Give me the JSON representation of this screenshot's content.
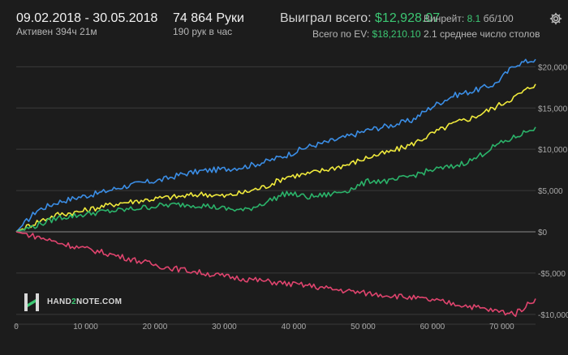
{
  "header": {
    "date_range": "09.02.2018 - 30.05.2018",
    "active_time": "Активен 394ч 21м",
    "hands": "74 864 Руки",
    "hands_per_hour": "190 рук в час",
    "won_label": "Выиграл всего:",
    "won_value": "$12,928.07",
    "ev_label": "Всего по EV:",
    "ev_value": "$18,210.10",
    "winrate_label": "Винрейт:",
    "winrate_value": "8.1",
    "winrate_suffix": "бб/100",
    "tables": "2.1 среднее число столов"
  },
  "logo": {
    "brand_left": "HAND",
    "brand_mid": "2",
    "brand_right": "NOTE.COM"
  },
  "colors": {
    "background": "#1c1c1c",
    "ev": "#3b8ee6",
    "allin_ev": "#f0ea3c",
    "won": "#2bb36a",
    "non_showdown": "#e0446e",
    "accent_green": "#3cc773"
  },
  "icons": {
    "settings": "gear-icon"
  },
  "chart_data": {
    "type": "line",
    "title": "",
    "xlabel": "",
    "ylabel": "",
    "xlim": [
      0,
      74864
    ],
    "ylim": [
      -11000,
      22000
    ],
    "x_ticks": [
      0,
      10000,
      20000,
      30000,
      40000,
      50000,
      60000,
      70000
    ],
    "x_tick_labels": [
      "0",
      "10 000",
      "20 000",
      "30 000",
      "40 000",
      "50 000",
      "60 000",
      "70 000"
    ],
    "y_ticks": [
      20000,
      15000,
      10000,
      5000,
      0,
      -5000,
      -10000
    ],
    "y_tick_labels": [
      "$20,000",
      "$15,000",
      "$10,000",
      "$5,000",
      "$0",
      "-$5,000",
      "-$10,000"
    ],
    "grid": true,
    "x": [
      0,
      3000,
      6000,
      9000,
      12000,
      15000,
      18000,
      21000,
      24000,
      27000,
      30000,
      33000,
      36000,
      39000,
      42000,
      45000,
      48000,
      51000,
      54000,
      57000,
      60000,
      63000,
      66000,
      69000,
      72000,
      74864
    ],
    "series": [
      {
        "color": "#3b8ee6",
        "values": [
          0,
          2600,
          3600,
          4200,
          4700,
          5400,
          5900,
          6300,
          7000,
          7400,
          7600,
          7900,
          8500,
          9300,
          10300,
          10900,
          11600,
          12400,
          12900,
          13500,
          15200,
          16500,
          17100,
          17900,
          20300,
          20900
        ]
      },
      {
        "color": "#f0ea3c",
        "values": [
          0,
          1200,
          2100,
          2400,
          3000,
          3500,
          3800,
          4100,
          4300,
          4600,
          4300,
          4800,
          5500,
          6700,
          7000,
          7600,
          8200,
          9100,
          9700,
          10600,
          11900,
          13100,
          13900,
          15100,
          16400,
          17900
        ]
      },
      {
        "color": "#2bb36a",
        "values": [
          0,
          800,
          1700,
          2000,
          2400,
          2600,
          2900,
          3200,
          3300,
          3200,
          2800,
          2600,
          3600,
          4700,
          4200,
          4500,
          5100,
          6200,
          6100,
          6800,
          7500,
          7900,
          8800,
          10400,
          11500,
          12700
        ]
      },
      {
        "color": "#e0446e",
        "values": [
          0,
          -600,
          -1300,
          -1900,
          -2400,
          -3000,
          -3600,
          -4200,
          -4600,
          -5000,
          -5400,
          -5700,
          -6000,
          -6300,
          -6500,
          -6900,
          -7200,
          -7500,
          -7700,
          -8000,
          -8300,
          -8700,
          -9100,
          -9600,
          -9900,
          -8100
        ]
      }
    ]
  }
}
